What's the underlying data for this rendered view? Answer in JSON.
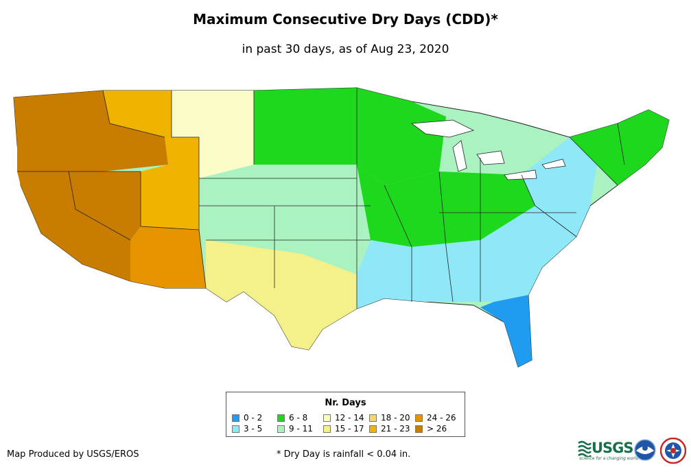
{
  "title": "Maximum Consecutive Dry Days (CDD)*",
  "subtitle": "in past 30 days, as of Aug 23, 2020",
  "legend": {
    "title": "Nr. Days",
    "items": [
      {
        "label": "0 - 2",
        "color": "#1f9bf0"
      },
      {
        "label": "3 - 5",
        "color": "#8ee8f8"
      },
      {
        "label": "6 - 8",
        "color": "#1ed81e"
      },
      {
        "label": "9 - 11",
        "color": "#aaf2c0"
      },
      {
        "label": "12 - 14",
        "color": "#fbfbc8"
      },
      {
        "label": "15 - 17",
        "color": "#f4f08a"
      },
      {
        "label": "18 - 20",
        "color": "#f1d86e"
      },
      {
        "label": "21 - 23",
        "color": "#f0b400"
      },
      {
        "label": "24 - 26",
        "color": "#e59400"
      },
      {
        "label": "> 26",
        "color": "#c87c00"
      }
    ]
  },
  "credit": "Map Produced by USGS/EROS",
  "footnote": "* Dry Day is rainfall < 0.04 in.",
  "logos": {
    "usgs_text": "USGS",
    "usgs_tagline": "science for a changing world"
  },
  "regions": [
    {
      "name": "pacific-northwest",
      "category": "> 26"
    },
    {
      "name": "california",
      "category": "> 26"
    },
    {
      "name": "great-basin",
      "category": "> 26"
    },
    {
      "name": "southwest",
      "category": "24 - 26"
    },
    {
      "name": "rockies",
      "category": "21 - 23"
    },
    {
      "name": "northern-plains",
      "category": "12 - 14"
    },
    {
      "name": "central-plains",
      "category": "9 - 11"
    },
    {
      "name": "texas",
      "category": "15 - 17"
    },
    {
      "name": "upper-midwest",
      "category": "6 - 8"
    },
    {
      "name": "ohio-valley",
      "category": "6 - 8"
    },
    {
      "name": "southeast",
      "category": "3 - 5"
    },
    {
      "name": "florida",
      "category": "0 - 2"
    },
    {
      "name": "northeast",
      "category": "3 - 5"
    },
    {
      "name": "new-england",
      "category": "6 - 8"
    }
  ]
}
